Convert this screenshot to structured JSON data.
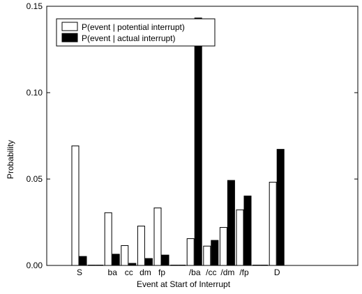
{
  "chart_data": {
    "type": "bar",
    "title": "",
    "xlabel": "Event at Start of Interrupt",
    "ylabel": "Probability",
    "ylim": [
      0,
      0.15
    ],
    "yticks": [
      "0.00",
      "0.05",
      "0.10",
      "0.15"
    ],
    "ytick_values": [
      0,
      0.05,
      0.1,
      0.15
    ],
    "grid": false,
    "legend_position": "top-left",
    "categories": [
      "S",
      "",
      "ba",
      "cc",
      "dm",
      "fp",
      "",
      "/ba",
      "/cc",
      "/dm",
      "/fp",
      "",
      "D"
    ],
    "series": [
      {
        "name": "P(event | potential interrupt)",
        "fill": "#ffffff",
        "values": [
          0.0692,
          0.0002,
          0.0305,
          0.0115,
          0.0228,
          0.0333,
          0.0002,
          0.0155,
          0.0112,
          0.022,
          0.0322,
          0.0002,
          0.0482
        ]
      },
      {
        "name": "P(event | actual interrupt)",
        "fill": "#000000",
        "values": [
          0.0052,
          0.0002,
          0.0065,
          0.0012,
          0.004,
          0.006,
          0.0002,
          0.1432,
          0.0145,
          0.0492,
          0.0402,
          0.0002,
          0.0672
        ]
      }
    ]
  }
}
